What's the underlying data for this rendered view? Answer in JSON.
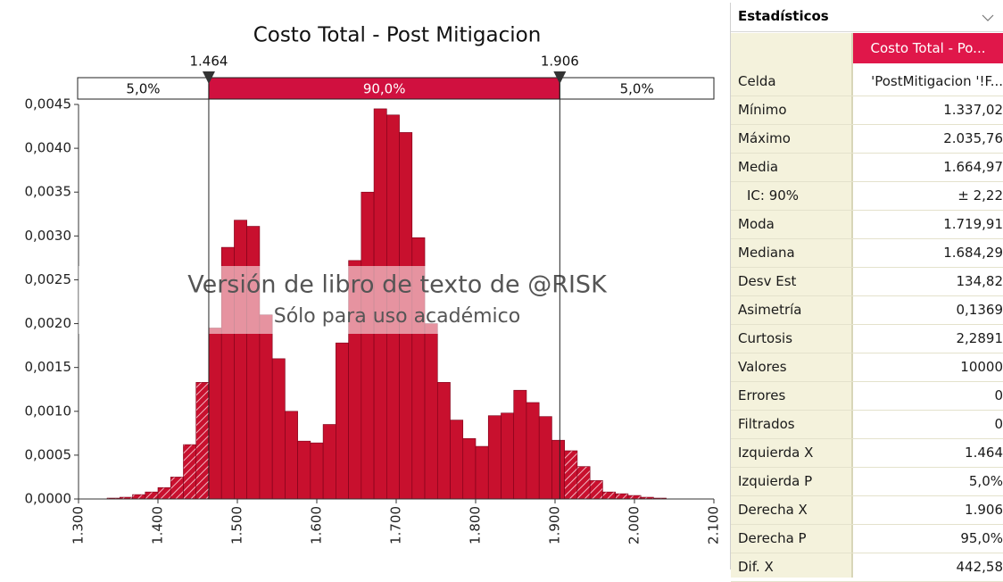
{
  "chart_data": {
    "type": "histogram",
    "title": "Costo Total - Post Mitigacion",
    "bins": [
      1.336,
      1.352,
      1.368,
      1.384,
      1.4,
      1.416,
      1.432,
      1.448,
      1.464,
      1.48,
      1.496,
      1.512,
      1.528,
      1.544,
      1.56,
      1.576,
      1.592,
      1.608,
      1.624,
      1.64,
      1.656,
      1.672,
      1.688,
      1.704,
      1.72,
      1.736,
      1.752,
      1.768,
      1.784,
      1.8,
      1.816,
      1.832,
      1.848,
      1.864,
      1.88,
      1.896,
      1.912,
      1.928,
      1.944,
      1.96,
      1.976,
      1.992,
      2.008,
      2.024,
      2.04
    ],
    "values": [
      1e-05,
      2e-05,
      5e-05,
      8e-05,
      0.00013,
      0.00025,
      0.00062,
      0.00133,
      0.00195,
      0.00287,
      0.00318,
      0.00311,
      0.0021,
      0.0016,
      0.001,
      0.00066,
      0.00064,
      0.00085,
      0.00178,
      0.00272,
      0.0035,
      0.00445,
      0.00438,
      0.00418,
      0.00298,
      0.002,
      0.00133,
      0.0009,
      0.00069,
      0.0006,
      0.00095,
      0.00098,
      0.00124,
      0.0011,
      0.00094,
      0.00067,
      0.00055,
      0.00037,
      0.00021,
      8e-05,
      6e-05,
      4e-05,
      2e-05,
      1e-05
    ],
    "color": "#c8102e",
    "xlim": [
      1.3,
      2.1
    ],
    "xticks": [
      {
        "value": 1.3,
        "label": "1.300"
      },
      {
        "value": 1.4,
        "label": "1.400"
      },
      {
        "value": 1.5,
        "label": "1.500"
      },
      {
        "value": 1.6,
        "label": "1.600"
      },
      {
        "value": 1.7,
        "label": "1.700"
      },
      {
        "value": 1.8,
        "label": "1.800"
      },
      {
        "value": 1.9,
        "label": "1.900"
      },
      {
        "value": 2.0,
        "label": "2.000"
      },
      {
        "value": 2.1,
        "label": "2.100"
      }
    ],
    "ylim": [
      0,
      0.0045
    ],
    "yticks": [
      {
        "value": 0,
        "label": "0,0000"
      },
      {
        "value": 0.0005,
        "label": "0,0005"
      },
      {
        "value": 0.001,
        "label": "0,0010"
      },
      {
        "value": 0.0015,
        "label": "0,0015"
      },
      {
        "value": 0.002,
        "label": "0,0020"
      },
      {
        "value": 0.0025,
        "label": "0,0025"
      },
      {
        "value": 0.003,
        "label": "0,0030"
      },
      {
        "value": 0.0035,
        "label": "0,0035"
      },
      {
        "value": 0.004,
        "label": "0,0040"
      },
      {
        "value": 0.0045,
        "label": "0,0045"
      }
    ],
    "delimiters": [
      {
        "value": 1.464,
        "label": "1.464"
      },
      {
        "value": 1.906,
        "label": "1.906"
      }
    ],
    "regions": [
      {
        "value": 5,
        "label": "5,0%"
      },
      {
        "value": 90,
        "label": "90,0%"
      },
      {
        "value": 5,
        "label": "5,0%"
      }
    ],
    "annotations": [
      "Versión de libro de texto de @RISK",
      "Sólo para uso académico"
    ]
  },
  "stats_panel": {
    "title": "Estadísticos",
    "column": "Costo Total - Po...",
    "rows": [
      [
        "Celda",
        "'PostMitigacion '!F..."
      ],
      [
        "Mínimo",
        "1.337,02"
      ],
      [
        "Máximo",
        "2.035,76"
      ],
      [
        "Media",
        "1.664,97"
      ],
      [
        "IC: 90%",
        "± 2,22"
      ],
      [
        "Moda",
        "1.719,91"
      ],
      [
        "Mediana",
        "1.684,29"
      ],
      [
        "Desv Est",
        "134,82"
      ],
      [
        "Asimetría",
        "0,1369"
      ],
      [
        "Curtosis",
        "2,2891"
      ],
      [
        "Valores",
        "10000"
      ],
      [
        "Errores",
        "0"
      ],
      [
        "Filtrados",
        "0"
      ],
      [
        "Izquierda X",
        "1.464"
      ],
      [
        "Izquierda P",
        "5,0%"
      ],
      [
        "Derecha X",
        "1.906"
      ],
      [
        "Derecha P",
        "95,0%"
      ],
      [
        "Dif. X",
        "442,58"
      ]
    ]
  }
}
